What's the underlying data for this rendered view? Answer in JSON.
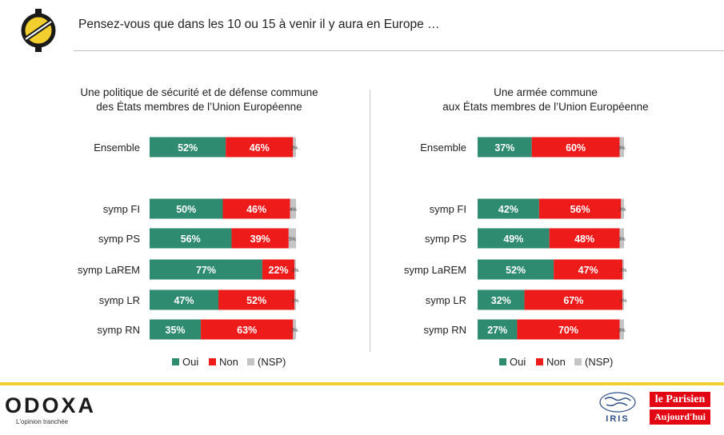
{
  "header": {
    "question": "Pensez-vous que dans les 10 ou 15 à venir il y aura en Europe …"
  },
  "colors": {
    "oui": "#2e8b6f",
    "non": "#ee1b1b",
    "nsp": "#c4c4c4",
    "accent": "#f2cf2e"
  },
  "chart_data": [
    {
      "type": "bar",
      "orientation": "horizontal",
      "stacked": true,
      "title_lines": [
        "Une politique de sécurité et de défense commune",
        "des États membres de l’Union Européenne"
      ],
      "categories": [
        "Ensemble",
        "symp FI",
        "symp PS",
        "symp LaREM",
        "symp LR",
        "symp RN"
      ],
      "series": [
        {
          "name": "Oui",
          "values": [
            52,
            50,
            56,
            77,
            47,
            35
          ]
        },
        {
          "name": "Non",
          "values": [
            46,
            46,
            39,
            22,
            52,
            63
          ]
        },
        {
          "name": "(NSP)",
          "values": [
            2,
            4,
            5,
            1,
            1,
            2
          ]
        }
      ],
      "labels": [
        [
          "52%",
          "46%",
          "2%"
        ],
        [
          "50%",
          "46%",
          "4%"
        ],
        [
          "56%",
          "39%",
          "5%"
        ],
        [
          "77%",
          "22%",
          "1%"
        ],
        [
          "47%",
          "52%",
          "1%"
        ],
        [
          "35%",
          "63%",
          "2%"
        ]
      ],
      "legend": {
        "position": "bottom",
        "items": [
          "Oui",
          "Non",
          "(NSP)"
        ]
      }
    },
    {
      "type": "bar",
      "orientation": "horizontal",
      "stacked": true,
      "title_lines": [
        "Une armée commune",
        "aux États membres de l’Union Européenne"
      ],
      "categories": [
        "Ensemble",
        "symp FI",
        "symp PS",
        "symp LaREM",
        "symp LR",
        "symp RN"
      ],
      "series": [
        {
          "name": "Oui",
          "values": [
            37,
            42,
            49,
            52,
            32,
            27
          ]
        },
        {
          "name": "Non",
          "values": [
            60,
            56,
            48,
            47,
            67,
            70
          ]
        },
        {
          "name": "(NSP)",
          "values": [
            3,
            2,
            3,
            1,
            1,
            3
          ]
        }
      ],
      "labels": [
        [
          "37%",
          "60%",
          "3%"
        ],
        [
          "42%",
          "56%",
          "2%"
        ],
        [
          "49%",
          "48%",
          "3%"
        ],
        [
          "52%",
          "47%",
          "1%"
        ],
        [
          "32%",
          "67%",
          "1%"
        ],
        [
          "27%",
          "70%",
          "3%"
        ]
      ],
      "legend": {
        "position": "bottom",
        "items": [
          "Oui",
          "Non",
          "(NSP)"
        ]
      }
    }
  ],
  "footer": {
    "brand": "ODOXA",
    "tagline": "L'opinion tranchée",
    "partner1": "IRIS",
    "partner2_line1": "le Parisien",
    "partner2_line2": "Aujourd'hui"
  }
}
